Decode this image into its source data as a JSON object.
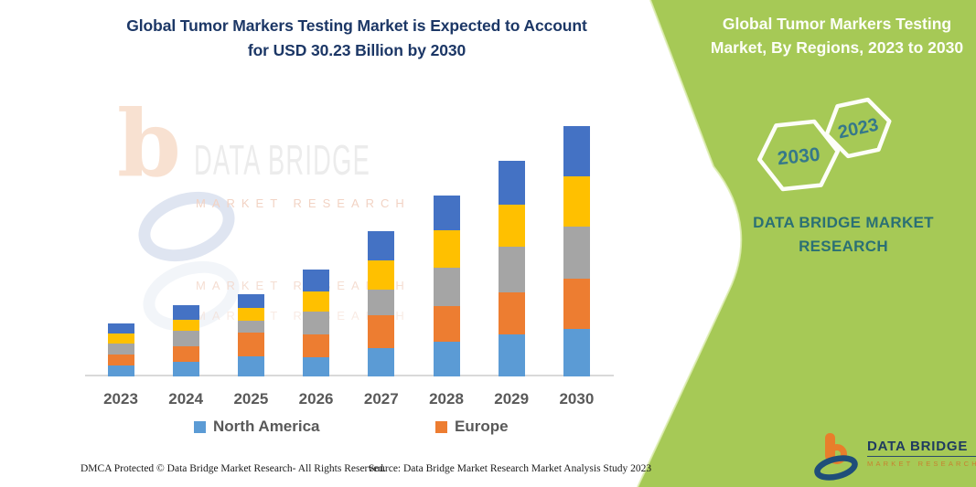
{
  "header": {
    "left_title_line1": "Global Tumor Markers Testing Market is Expected to Account",
    "left_title_line2": "for USD 30.23 Billion by 2030"
  },
  "right_panel": {
    "title_line1": "Global Tumor Markers Testing",
    "title_line2": "Market, By Regions, 2023 to 2030",
    "hexagon_back_label": "2030",
    "hexagon_front_label": "2023",
    "brand_line1": "DATA BRIDGE MARKET",
    "brand_line2": "RESEARCH",
    "panel_color": "#A6C956",
    "brand_text_color": "#2B7074",
    "hexagon_text_color": "#35788A"
  },
  "watermark": {
    "title": "DATA BRIDGE",
    "subtitle": "MARKET RESEARCH",
    "subtitle_repeat1": "MARKET RESEARCH",
    "subtitle_repeat2": "MARKET RESEARCH"
  },
  "chart_data": {
    "type": "bar",
    "stacked": true,
    "title": "Global Tumor Markers Testing Market is Expected to Account for USD 30.23 Billion by 2030",
    "categories": [
      "2023",
      "2024",
      "2025",
      "2026",
      "2027",
      "2028",
      "2029",
      "2030"
    ],
    "series": [
      {
        "name": "North America",
        "color": "#5B9BD5",
        "in_legend": true,
        "values": [
          1.3,
          1.7,
          2.4,
          2.3,
          3.4,
          4.2,
          5.0,
          5.7
        ]
      },
      {
        "name": "Europe",
        "color": "#ED7D31",
        "in_legend": true,
        "values": [
          1.3,
          1.9,
          2.8,
          2.7,
          3.9,
          4.3,
          5.1,
          6.1
        ]
      },
      {
        "name": "Unlabeled series 3 (gray)",
        "color": "#A5A5A5",
        "in_legend": false,
        "values": [
          1.3,
          1.9,
          1.5,
          2.8,
          3.2,
          4.6,
          5.5,
          6.3
        ]
      },
      {
        "name": "Unlabeled series 4 (yellow)",
        "color": "#FFC000",
        "in_legend": false,
        "values": [
          1.2,
          1.3,
          1.5,
          2.4,
          3.5,
          4.5,
          5.1,
          6.0
        ]
      },
      {
        "name": "Unlabeled series 5 (dark blue)",
        "color": "#4472C4",
        "in_legend": false,
        "values": [
          1.3,
          1.8,
          1.7,
          2.7,
          3.5,
          4.2,
          5.3,
          6.1
        ]
      }
    ],
    "totals_estimated": [
      6.4,
      8.6,
      9.9,
      12.9,
      17.5,
      21.8,
      26.0,
      30.2
    ],
    "value_unit": "USD Billion (values estimated from bar heights; only the 2030 total of 30.23 is stated)",
    "xlabel": "",
    "ylabel": "",
    "ylim": [
      0,
      32
    ],
    "y_axis_visible": false,
    "gridlines": false,
    "legend_position": "bottom",
    "legend_visible_series": [
      "North America",
      "Europe"
    ]
  },
  "legend": [
    {
      "label": "North America",
      "color": "#5B9BD5"
    },
    {
      "label": "Europe",
      "color": "#ED7D31"
    }
  ],
  "footer": {
    "left": "DMCA Protected © Data Bridge Market Research-  All Rights Reserved.",
    "right": "Source: Data Bridge Market Research  Market Analysis Study 2023"
  },
  "brand_logo": {
    "title": "DATA BRIDGE",
    "subtitle": "MARKET RESEARCH"
  },
  "colors": {
    "title_navy": "#1C3766",
    "axis_label_gray": "#595959",
    "axis_line_gray": "#D9D9D9",
    "green_panel": "#A6C956"
  }
}
